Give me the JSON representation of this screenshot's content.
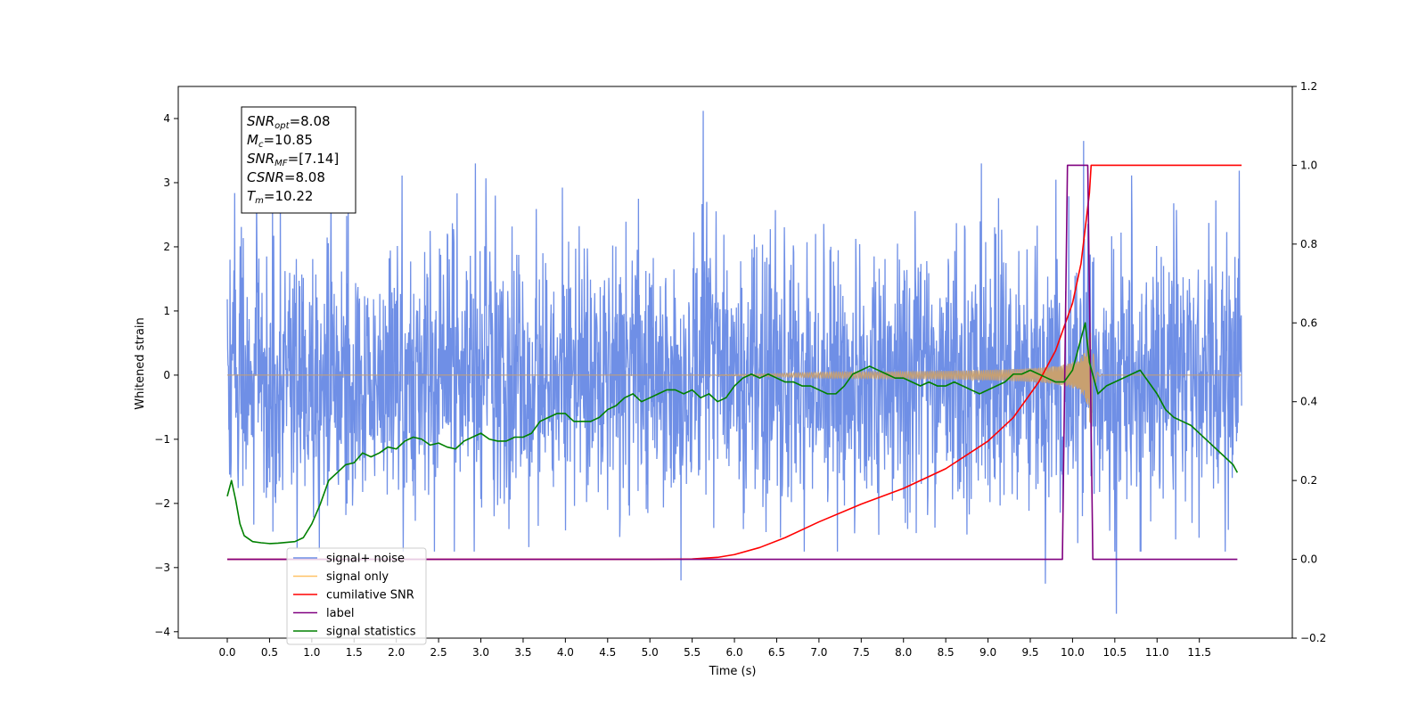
{
  "chart_data": {
    "type": "line",
    "xlabel": "Time (s)",
    "ylabel_left": "Whitened strain",
    "ylabel_right": "",
    "xlim": [
      -0.58,
      12.6
    ],
    "ylim_left": [
      -4.1,
      4.5
    ],
    "ylim_right": [
      -0.2,
      1.2
    ],
    "x_ticks": [
      0.0,
      0.5,
      1.0,
      1.5,
      2.0,
      2.5,
      3.0,
      3.5,
      4.0,
      4.5,
      5.0,
      5.5,
      6.0,
      6.5,
      7.0,
      7.5,
      8.0,
      8.5,
      9.0,
      9.5,
      10.0,
      10.5,
      11.0,
      11.5
    ],
    "x_tick_labels": [
      "0.0",
      "0.5",
      "1.0",
      "1.5",
      "2.0",
      "2.5",
      "3.0",
      "3.5",
      "4.0",
      "4.5",
      "5.0",
      "5.5",
      "6.0",
      "6.5",
      "7.0",
      "7.5",
      "8.0",
      "8.5",
      "9.0",
      "9.5",
      "10.0",
      "10.5",
      "11.0",
      "11.5"
    ],
    "y_left_ticks": [
      4,
      3,
      2,
      1,
      0,
      -1,
      -2,
      -3,
      -4
    ],
    "y_left_tick_labels": [
      "4",
      "3",
      "2",
      "1",
      "0",
      "−1",
      "−2",
      "−3",
      "−4"
    ],
    "y_right_ticks": [
      1.2,
      1.0,
      0.8,
      0.6,
      0.4,
      0.2,
      0.0,
      -0.2
    ],
    "y_right_tick_labels": [
      "1.2",
      "1.0",
      "0.8",
      "0.6",
      "0.4",
      "0.2",
      "0.0",
      "−0.2"
    ],
    "grid": false,
    "legend_position": "lower-left",
    "annotation": {
      "lines": [
        {
          "base": "SNR",
          "sub": "opt",
          "value": "=8.08"
        },
        {
          "base": "M",
          "sub": "c",
          "value": "=10.85"
        },
        {
          "base": "SNR",
          "sub": "MF",
          "value": "=[7.14]"
        },
        {
          "base": "CSNR",
          "sub": "",
          "value": "=8.08"
        },
        {
          "base": "T",
          "sub": "m",
          "value": "=10.22"
        }
      ]
    },
    "legend": [
      {
        "label": "signal+ noise",
        "color": "#6f8fe6"
      },
      {
        "label": "signal only",
        "color": "#ffc266"
      },
      {
        "label": "cumilative SNR",
        "color": "#ff0000"
      },
      {
        "label": "label",
        "color": "#800080"
      },
      {
        "label": "signal statistics",
        "color": "#008000"
      }
    ],
    "series": [
      {
        "name": "signal+ noise",
        "axis": "left",
        "color": "#6f8fe6",
        "kind": "noise",
        "x_range": [
          0.0,
          12.0
        ],
        "envelope_max": 4.12,
        "envelope_min": -3.72,
        "notable_peaks": [
          [
            5.63,
            4.12
          ],
          [
            10.13,
            3.65
          ],
          [
            10.52,
            -3.72
          ],
          [
            9.68,
            -3.25
          ],
          [
            5.37,
            -3.2
          ]
        ]
      },
      {
        "name": "signal only",
        "axis": "left",
        "color": "#c8a070",
        "kind": "chirp",
        "x_range": [
          0.0,
          12.0
        ],
        "peak_time": 10.22,
        "peak_amplitude": 1.0
      },
      {
        "name": "cumilative SNR",
        "axis": "right",
        "color": "#ff0000",
        "x": [
          0.0,
          5.0,
          5.5,
          5.8,
          6.0,
          6.3,
          6.6,
          7.0,
          7.5,
          8.0,
          8.5,
          9.0,
          9.3,
          9.6,
          9.8,
          10.0,
          10.1,
          10.15,
          10.2,
          10.22,
          12.0
        ],
        "y": [
          0.0,
          0.0,
          0.001,
          0.005,
          0.012,
          0.03,
          0.055,
          0.095,
          0.14,
          0.18,
          0.23,
          0.3,
          0.36,
          0.45,
          0.53,
          0.65,
          0.75,
          0.84,
          0.93,
          1.0,
          1.0
        ]
      },
      {
        "name": "label",
        "axis": "right",
        "color": "#800080",
        "x": [
          0.0,
          9.88,
          9.94,
          10.18,
          10.24,
          11.95
        ],
        "y": [
          0.0,
          0.0,
          1.0,
          1.0,
          0.0,
          0.0
        ]
      },
      {
        "name": "signal statistics",
        "axis": "right",
        "color": "#008000",
        "x": [
          0.0,
          0.05,
          0.1,
          0.15,
          0.2,
          0.3,
          0.4,
          0.5,
          0.6,
          0.7,
          0.8,
          0.9,
          1.0,
          1.1,
          1.2,
          1.3,
          1.4,
          1.5,
          1.6,
          1.7,
          1.8,
          1.9,
          2.0,
          2.1,
          2.2,
          2.3,
          2.4,
          2.5,
          2.6,
          2.7,
          2.8,
          2.9,
          3.0,
          3.1,
          3.2,
          3.3,
          3.4,
          3.5,
          3.6,
          3.7,
          3.8,
          3.9,
          4.0,
          4.1,
          4.2,
          4.3,
          4.4,
          4.5,
          4.6,
          4.7,
          4.8,
          4.9,
          5.0,
          5.1,
          5.2,
          5.3,
          5.4,
          5.5,
          5.6,
          5.7,
          5.8,
          5.9,
          6.0,
          6.1,
          6.2,
          6.3,
          6.4,
          6.5,
          6.6,
          6.7,
          6.8,
          6.9,
          7.0,
          7.1,
          7.2,
          7.3,
          7.4,
          7.5,
          7.6,
          7.7,
          7.8,
          7.9,
          8.0,
          8.1,
          8.2,
          8.3,
          8.4,
          8.5,
          8.6,
          8.7,
          8.8,
          8.9,
          9.0,
          9.1,
          9.2,
          9.3,
          9.4,
          9.5,
          9.6,
          9.7,
          9.8,
          9.9,
          10.0,
          10.1,
          10.15,
          10.2,
          10.3,
          10.4,
          10.5,
          10.6,
          10.7,
          10.8,
          10.9,
          11.0,
          11.1,
          11.2,
          11.3,
          11.4,
          11.5,
          11.6,
          11.7,
          11.8,
          11.9,
          11.95
        ],
        "y": [
          0.16,
          0.2,
          0.15,
          0.09,
          0.06,
          0.045,
          0.042,
          0.04,
          0.041,
          0.043,
          0.045,
          0.055,
          0.09,
          0.14,
          0.2,
          0.22,
          0.24,
          0.245,
          0.27,
          0.26,
          0.27,
          0.285,
          0.28,
          0.3,
          0.31,
          0.305,
          0.29,
          0.295,
          0.285,
          0.28,
          0.3,
          0.31,
          0.32,
          0.305,
          0.3,
          0.3,
          0.31,
          0.31,
          0.32,
          0.35,
          0.36,
          0.37,
          0.37,
          0.35,
          0.35,
          0.35,
          0.36,
          0.38,
          0.39,
          0.41,
          0.42,
          0.4,
          0.41,
          0.42,
          0.43,
          0.43,
          0.42,
          0.43,
          0.41,
          0.42,
          0.4,
          0.41,
          0.44,
          0.46,
          0.47,
          0.46,
          0.47,
          0.46,
          0.45,
          0.45,
          0.44,
          0.44,
          0.43,
          0.42,
          0.42,
          0.44,
          0.47,
          0.48,
          0.49,
          0.48,
          0.47,
          0.46,
          0.46,
          0.45,
          0.44,
          0.45,
          0.44,
          0.44,
          0.45,
          0.44,
          0.43,
          0.42,
          0.43,
          0.44,
          0.45,
          0.47,
          0.47,
          0.48,
          0.47,
          0.46,
          0.45,
          0.45,
          0.48,
          0.56,
          0.6,
          0.5,
          0.42,
          0.44,
          0.45,
          0.46,
          0.47,
          0.48,
          0.45,
          0.42,
          0.38,
          0.36,
          0.35,
          0.34,
          0.32,
          0.3,
          0.28,
          0.26,
          0.24,
          0.22
        ]
      }
    ]
  }
}
